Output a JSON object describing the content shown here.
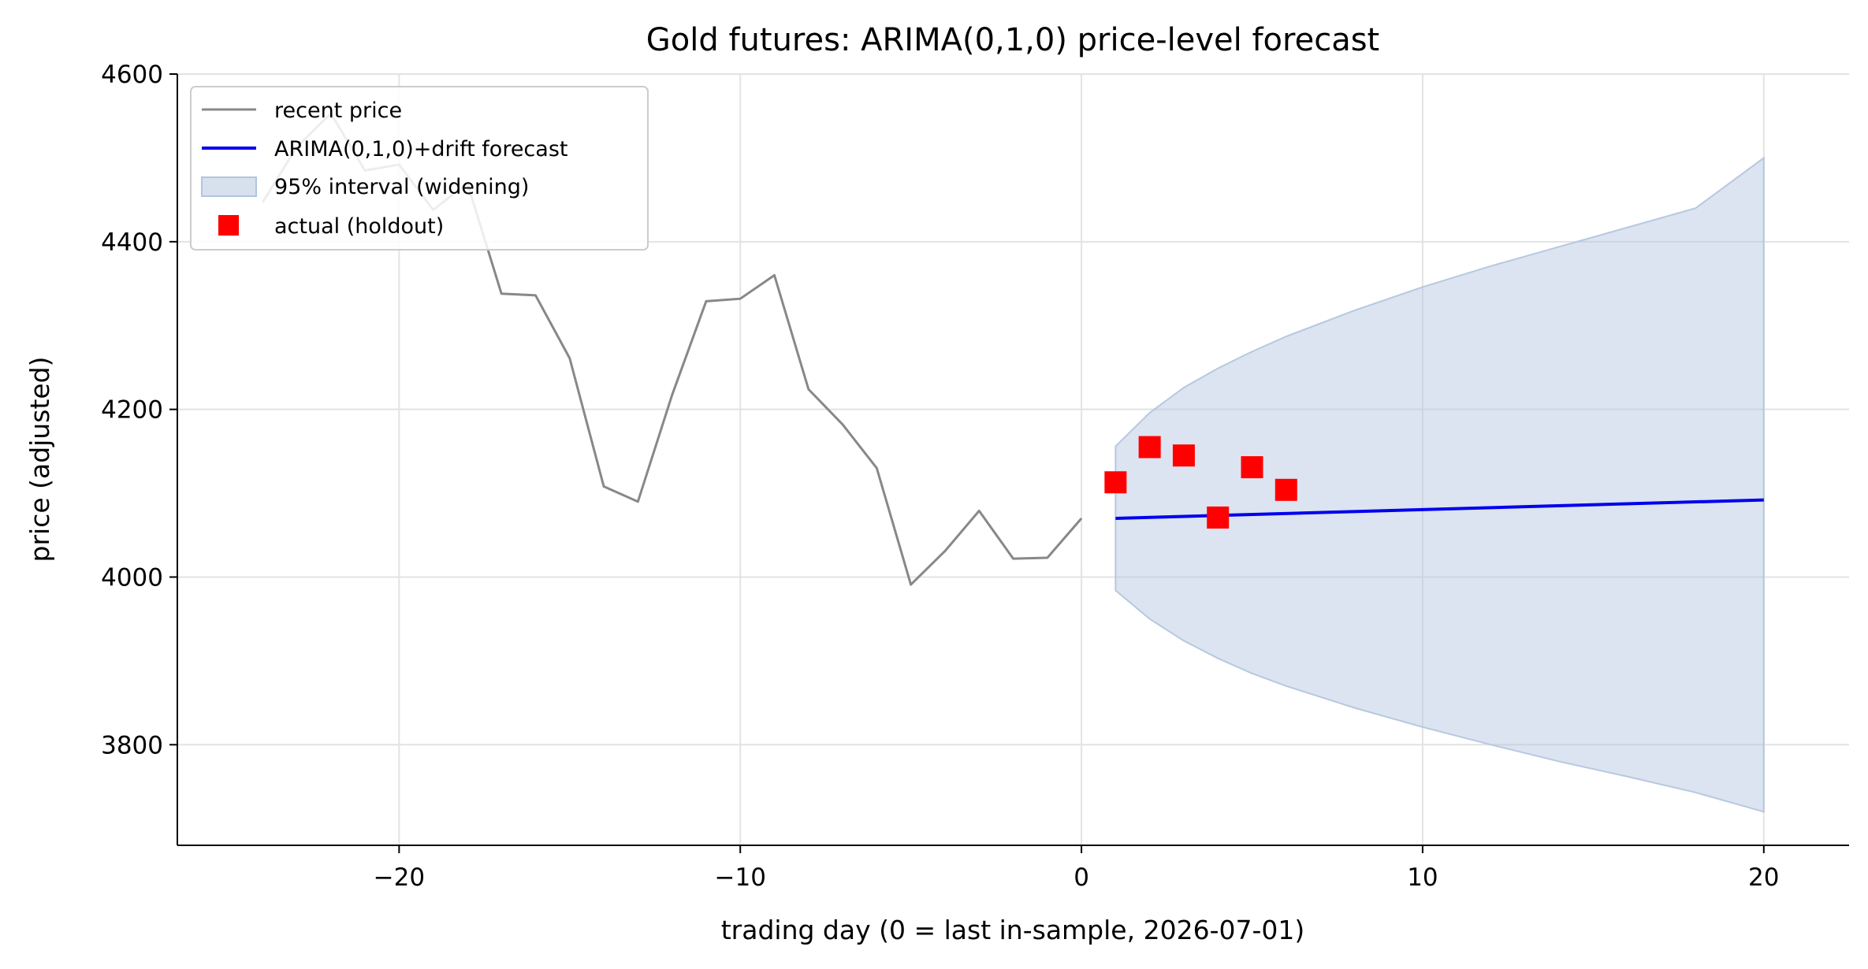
{
  "chart_data": {
    "type": "line",
    "title": "Gold futures: ARIMA(0,1,0) price-level forecast",
    "xlabel": "trading day (0 = last in-sample, 2026-07-01)",
    "ylabel": "price (adjusted)",
    "xlim": [
      -26.5,
      22.5
    ],
    "ylim": [
      3680,
      4600
    ],
    "x_ticks": [
      -20,
      -10,
      0,
      10,
      20
    ],
    "x_tick_labels": [
      "−20",
      "−10",
      "0",
      "10",
      "20"
    ],
    "y_ticks": [
      3800,
      4000,
      4200,
      4400,
      4600
    ],
    "y_tick_labels": [
      "3800",
      "4000",
      "4200",
      "4400",
      "4600"
    ],
    "grid": true,
    "legend_placement": "top-left",
    "series": [
      {
        "name": "recent price",
        "kind": "line",
        "color": "#888888",
        "x": [
          -24,
          -23,
          -22,
          -21,
          -20,
          -19,
          -18,
          -17,
          -16,
          -15,
          -14,
          -13,
          -12,
          -11,
          -10,
          -9,
          -8,
          -7,
          -6,
          -5,
          -4,
          -3,
          -2,
          -1,
          0
        ],
        "y": [
          4447,
          4513,
          4553,
          4485,
          4492,
          4438,
          4470,
          4338,
          4336,
          4261,
          4108,
          4090,
          4217,
          4329,
          4332,
          4360,
          4224,
          4182,
          4130,
          3991,
          4031,
          4079,
          4022,
          4023,
          4070
        ]
      },
      {
        "name": "ARIMA(0,1,0)+drift forecast",
        "kind": "line",
        "color": "#0000ee",
        "x": [
          1,
          20
        ],
        "y": [
          4070,
          4092
        ]
      },
      {
        "name": "95% interval (widening)",
        "kind": "band",
        "color": "#b0c4de",
        "x": [
          1,
          2,
          3,
          4,
          5,
          6,
          8,
          10,
          12,
          14,
          16,
          18,
          20
        ],
        "lower": [
          3984,
          3950,
          3924,
          3903,
          3885,
          3870,
          3844,
          3821,
          3800,
          3780,
          3762,
          3743,
          3720
        ],
        "upper": [
          4156,
          4196,
          4226,
          4249,
          4269,
          4287,
          4318,
          4346,
          4371,
          4394,
          4417,
          4440,
          4500
        ]
      },
      {
        "name": "actual (holdout)",
        "kind": "scatter",
        "color": "#ff0000",
        "x": [
          1,
          2,
          3,
          4,
          5,
          6
        ],
        "y": [
          4113,
          4155,
          4145,
          4071,
          4131,
          4104
        ]
      }
    ]
  }
}
